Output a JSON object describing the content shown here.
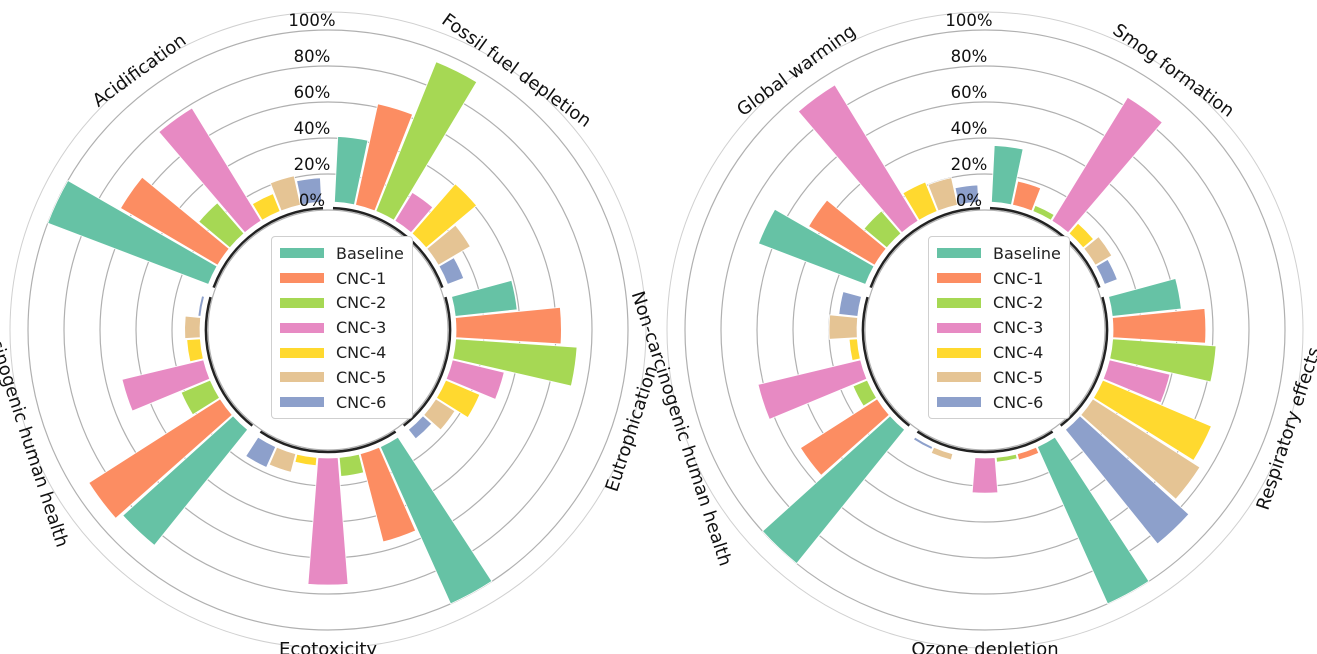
{
  "chart_data": [
    {
      "type": "radial-bar",
      "radial_ticks": [
        "0%",
        "20%",
        "40%",
        "60%",
        "80%",
        "100%"
      ],
      "ylim": [
        0,
        100
      ],
      "grid": true,
      "legend_position": "center",
      "series": [
        {
          "name": "Baseline",
          "color": "#66c2a5"
        },
        {
          "name": "CNC-1",
          "color": "#fc8d62"
        },
        {
          "name": "CNC-2",
          "color": "#a6d854"
        },
        {
          "name": "CNC-3",
          "color": "#e78ac3"
        },
        {
          "name": "CNC-4",
          "color": "#ffd92f"
        },
        {
          "name": "CNC-5",
          "color": "#e5c494"
        },
        {
          "name": "CNC-6",
          "color": "#8da0cb"
        }
      ],
      "categories": [
        {
          "name": "Acidification",
          "values": [
            100,
            67,
            27,
            78,
            15,
            21,
            18
          ]
        },
        {
          "name": "Fossil fuel depletion",
          "values": [
            41,
            62,
            94,
            23,
            41,
            25,
            14
          ]
        },
        {
          "name": "Eutrophication",
          "values": [
            39,
            63,
            72,
            34,
            25,
            17,
            11
          ]
        },
        {
          "name": "Ecotoxicity",
          "values": [
            100,
            55,
            15,
            75,
            9,
            15,
            17
          ]
        },
        {
          "name": "Carcinogenic human health",
          "values": [
            87,
            91,
            22,
            51,
            12,
            13,
            6
          ]
        }
      ]
    },
    {
      "type": "radial-bar",
      "radial_ticks": [
        "0%",
        "20%",
        "40%",
        "60%",
        "80%",
        "100%"
      ],
      "ylim": [
        0,
        100
      ],
      "grid": true,
      "legend_position": "center",
      "series": [
        {
          "name": "Baseline",
          "color": "#66c2a5"
        },
        {
          "name": "CNC-1",
          "color": "#fc8d62"
        },
        {
          "name": "CNC-2",
          "color": "#a6d854"
        },
        {
          "name": "CNC-3",
          "color": "#e78ac3"
        },
        {
          "name": "CNC-4",
          "color": "#ffd92f"
        },
        {
          "name": "CNC-5",
          "color": "#e5c494"
        },
        {
          "name": "CNC-6",
          "color": "#8da0cb"
        }
      ],
      "categories": [
        {
          "name": "Global warming",
          "values": [
            68,
            47,
            21,
            93,
            22,
            20,
            14
          ]
        },
        {
          "name": "Smog formation",
          "values": [
            36,
            18,
            8,
            85,
            12,
            15,
            12
          ]
        },
        {
          "name": "Respiratory effects",
          "values": [
            43,
            56,
            62,
            39,
            70,
            75,
            86
          ]
        },
        {
          "name": "Ozone depletion",
          "values": [
            100,
            8,
            7,
            24,
            4,
            8,
            6
          ]
        },
        {
          "name": "Non-carcinogenic human health",
          "values": [
            100,
            55,
            13,
            63,
            9,
            20,
            15
          ]
        }
      ]
    }
  ],
  "legend_labels": [
    "Baseline",
    "CNC-1",
    "CNC-2",
    "CNC-3",
    "CNC-4",
    "CNC-5",
    "CNC-6"
  ],
  "legend_colors": [
    "#66c2a5",
    "#fc8d62",
    "#a6d854",
    "#e78ac3",
    "#ffd92f",
    "#e5c494",
    "#8da0cb"
  ]
}
